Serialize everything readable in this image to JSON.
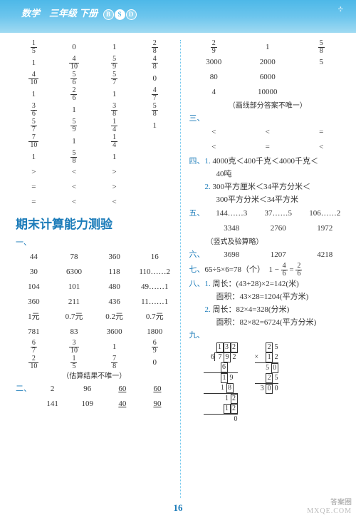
{
  "header": {
    "subject": "数学　三年级",
    "vol": "下册",
    "b": "B",
    "s": "S",
    "d": "D",
    "corner": "÷"
  },
  "left": {
    "top_rows": [
      [
        "1/5",
        "0",
        "1",
        "2/8"
      ],
      [
        "1",
        "4/10",
        "5/9",
        "4/8"
      ],
      [
        "4/10",
        "5/6",
        "5/7",
        "0"
      ],
      [
        "1",
        "2/6",
        "1",
        "4/7"
      ],
      [
        "3/6",
        "1",
        "3/8",
        "5/8"
      ],
      [
        "5/7",
        "5/9",
        "1/4",
        "1"
      ],
      [
        "7/10",
        "1",
        "1/4",
        ""
      ],
      [
        "1",
        "5/8",
        "1",
        ""
      ],
      [
        ">",
        "<",
        ">",
        ""
      ],
      [
        "=",
        "<",
        ">",
        ""
      ],
      [
        "=",
        "<",
        "<",
        ""
      ]
    ],
    "title": "期末计算能力测验",
    "sec1": "一、",
    "g1": [
      [
        "44",
        "78",
        "360",
        "16"
      ],
      [
        "30",
        "6300",
        "118",
        "110……2"
      ],
      [
        "104",
        "101",
        "480",
        "49……1"
      ],
      [
        "360",
        "211",
        "436",
        "11……1"
      ],
      [
        "1元",
        "0.7元",
        "0.2元",
        "0.7元"
      ],
      [
        "781",
        "83",
        "3600",
        "1800"
      ],
      [
        "6/7",
        "3/10",
        "1",
        "6/9"
      ],
      [
        "2/10",
        "1/5",
        "7/8",
        "0"
      ]
    ],
    "note1": "（估算结果不唯一）",
    "sec2": "二、",
    "g2": [
      [
        "2",
        "96"
      ],
      [
        "141",
        "109"
      ]
    ],
    "g2u": [
      [
        "60",
        "60"
      ],
      [
        "40",
        "90"
      ]
    ]
  },
  "right": {
    "r1": [
      "2/9",
      "1",
      "5/8"
    ],
    "r2": [
      [
        "3000",
        "2000",
        "5"
      ],
      [
        "80",
        "6000",
        ""
      ],
      [
        "4",
        "10000",
        ""
      ]
    ],
    "note2": "（画线部分答案不唯一）",
    "sec3": "三、",
    "cmp": [
      [
        "<",
        "<",
        "="
      ],
      [
        "<",
        "=",
        "<"
      ]
    ],
    "sec4": "四、",
    "s4_1": "4000克＜400千克＜4000千克＜",
    "s4_1b": "40吨",
    "s4_2": "300平方厘米＜34平方分米＜",
    "s4_2b": "300平方分米＜34平方米",
    "sec5": "五、",
    "g5": [
      [
        "144……3",
        "37……5",
        "106……2"
      ],
      [
        "3348",
        "2760",
        "1972"
      ]
    ],
    "note5": "（竖式及验算略）",
    "sec6": "六、",
    "g6": [
      "3698",
      "1207",
      "4218"
    ],
    "sec7": "七、",
    "s7a": "65÷5×6=78（个）",
    "s7b": "1 −",
    "s7f": "4/6",
    "s7eq": "=",
    "s7r": "2/6",
    "sec8": "八、",
    "s8_1a": "周长：(43+28)×2=142(米)",
    "s8_1b": "面积：43×28=1204(平方米)",
    "s8_2a": "周长：82×4=328(分米)",
    "s8_2b": "面积：82×82=6724(平方分米)",
    "sec9": "九、"
  },
  "pagenum": "16",
  "brand": "答案圈",
  "wm": "MXQE.COM"
}
